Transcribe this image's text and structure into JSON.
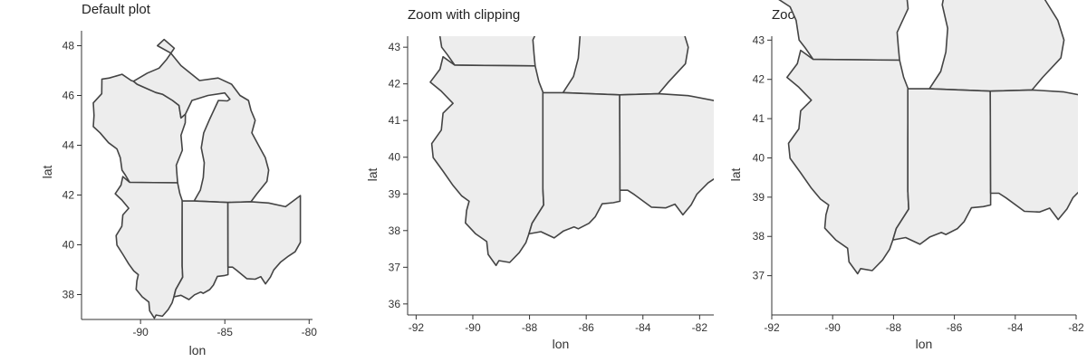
{
  "chart_data": [
    {
      "type": "map",
      "title": "Default plot",
      "xlabel": "lon",
      "ylabel": "lat",
      "xlim": [
        -93.5,
        -79.8
      ],
      "ylim": [
        37.0,
        48.6
      ],
      "xticks": [
        -90,
        -85,
        -80
      ],
      "yticks": [
        38,
        40,
        42,
        44,
        46,
        48
      ],
      "clip": false,
      "regions": [
        "Wisconsin",
        "Michigan",
        "Illinois",
        "Indiana",
        "Ohio"
      ]
    },
    {
      "type": "map",
      "title": "Zoom with clipping",
      "xlabel": "lon",
      "ylabel": "lat",
      "xlim": [
        -92.3,
        -81.5
      ],
      "ylim": [
        35.7,
        43.3
      ],
      "xticks": [
        -92,
        -90,
        -88,
        -86,
        -84,
        -82
      ],
      "yticks": [
        36,
        37,
        38,
        39,
        40,
        41,
        42,
        43
      ],
      "clip": true,
      "regions": [
        "Wisconsin",
        "Michigan",
        "Illinois",
        "Indiana",
        "Ohio"
      ]
    },
    {
      "type": "map",
      "title": "Zoom without clipping",
      "xlabel": "lon",
      "ylabel": "lat",
      "xlim": [
        -92,
        -82
      ],
      "ylim": [
        36.0,
        43.1
      ],
      "xticks": [
        -92,
        -90,
        -88,
        -86,
        -84,
        -82
      ],
      "yticks": [
        37,
        38,
        39,
        40,
        41,
        42,
        43
      ],
      "clip": false,
      "regions": [
        "Wisconsin",
        "Michigan",
        "Illinois",
        "Indiana",
        "Ohio"
      ]
    }
  ],
  "states": {
    "Illinois": [
      [
        -90.64,
        42.51
      ],
      [
        -91.05,
        42.74
      ],
      [
        -91.16,
        42.4
      ],
      [
        -91.5,
        42.05
      ],
      [
        -91.11,
        41.8
      ],
      [
        -90.7,
        41.47
      ],
      [
        -91.05,
        41.2
      ],
      [
        -91.11,
        40.74
      ],
      [
        -91.45,
        40.37
      ],
      [
        -91.4,
        39.99
      ],
      [
        -91.05,
        39.62
      ],
      [
        -90.7,
        39.23
      ],
      [
        -90.4,
        38.95
      ],
      [
        -90.13,
        38.8
      ],
      [
        -90.22,
        38.55
      ],
      [
        -90.26,
        38.21
      ],
      [
        -89.9,
        37.91
      ],
      [
        -89.51,
        37.7
      ],
      [
        -89.46,
        37.35
      ],
      [
        -89.18,
        37.05
      ],
      [
        -89.08,
        37.18
      ],
      [
        -88.7,
        37.13
      ],
      [
        -88.36,
        37.4
      ],
      [
        -88.13,
        37.67
      ],
      [
        -88.02,
        37.91
      ],
      [
        -87.91,
        38.2
      ],
      [
        -87.5,
        38.7
      ],
      [
        -87.53,
        39.15
      ],
      [
        -87.53,
        39.5
      ],
      [
        -87.53,
        40.5
      ],
      [
        -87.52,
        41.7
      ],
      [
        -87.52,
        41.76
      ],
      [
        -87.67,
        42.06
      ],
      [
        -87.8,
        42.49
      ],
      [
        -90.64,
        42.51
      ]
    ],
    "Indiana": [
      [
        -87.53,
        41.76
      ],
      [
        -87.53,
        39.5
      ],
      [
        -87.53,
        39.15
      ],
      [
        -87.5,
        38.7
      ],
      [
        -87.91,
        38.2
      ],
      [
        -88.02,
        37.91
      ],
      [
        -87.6,
        37.97
      ],
      [
        -87.13,
        37.8
      ],
      [
        -86.8,
        37.99
      ],
      [
        -86.43,
        38.1
      ],
      [
        -86.28,
        38.05
      ],
      [
        -85.9,
        38.2
      ],
      [
        -85.68,
        38.38
      ],
      [
        -85.44,
        38.73
      ],
      [
        -85.05,
        38.76
      ],
      [
        -84.81,
        38.8
      ],
      [
        -84.81,
        39.1
      ],
      [
        -84.82,
        41.7
      ],
      [
        -86.82,
        41.76
      ],
      [
        -87.53,
        41.76
      ]
    ],
    "Ohio": [
      [
        -84.82,
        41.7
      ],
      [
        -84.81,
        39.1
      ],
      [
        -84.54,
        39.1
      ],
      [
        -84.3,
        38.98
      ],
      [
        -83.7,
        38.64
      ],
      [
        -83.2,
        38.62
      ],
      [
        -82.87,
        38.72
      ],
      [
        -82.59,
        38.43
      ],
      [
        -82.3,
        38.7
      ],
      [
        -82.1,
        38.99
      ],
      [
        -81.7,
        39.3
      ],
      [
        -81.22,
        39.55
      ],
      [
        -80.83,
        39.72
      ],
      [
        -80.52,
        40.1
      ],
      [
        -80.52,
        40.64
      ],
      [
        -80.52,
        41.98
      ],
      [
        -81.4,
        41.53
      ],
      [
        -82.4,
        41.68
      ],
      [
        -83.45,
        41.73
      ],
      [
        -84.82,
        41.7
      ]
    ],
    "Michigan": [
      [
        -83.45,
        41.73
      ],
      [
        -84.82,
        41.7
      ],
      [
        -86.82,
        41.76
      ],
      [
        -86.45,
        42.2
      ],
      [
        -86.28,
        42.7
      ],
      [
        -86.22,
        43.3
      ],
      [
        -86.4,
        43.9
      ],
      [
        -86.25,
        44.5
      ],
      [
        -85.9,
        45.05
      ],
      [
        -85.38,
        45.8
      ],
      [
        -84.85,
        45.78
      ],
      [
        -84.7,
        45.85
      ],
      [
        -85.0,
        46.1
      ],
      [
        -86.0,
        46.0
      ],
      [
        -86.95,
        45.8
      ],
      [
        -87.34,
        45.25
      ],
      [
        -87.6,
        45.1
      ],
      [
        -87.72,
        45.6
      ],
      [
        -88.1,
        45.8
      ],
      [
        -88.7,
        46.05
      ],
      [
        -89.1,
        46.12
      ],
      [
        -90.2,
        46.45
      ],
      [
        -90.42,
        46.57
      ],
      [
        -89.6,
        46.9
      ],
      [
        -88.9,
        47.1
      ],
      [
        -88.45,
        47.45
      ],
      [
        -88.0,
        47.9
      ],
      [
        -88.6,
        48.25
      ],
      [
        -89.0,
        48.0
      ],
      [
        -88.2,
        47.7
      ],
      [
        -87.6,
        47.2
      ],
      [
        -86.5,
        46.6
      ],
      [
        -85.4,
        46.7
      ],
      [
        -84.6,
        46.45
      ],
      [
        -84.1,
        46.0
      ],
      [
        -83.6,
        45.8
      ],
      [
        -83.45,
        45.4
      ],
      [
        -83.2,
        45.0
      ],
      [
        -83.4,
        44.5
      ],
      [
        -83.0,
        44.0
      ],
      [
        -82.6,
        43.5
      ],
      [
        -82.4,
        43.0
      ],
      [
        -82.5,
        42.55
      ],
      [
        -83.1,
        42.05
      ],
      [
        -83.45,
        41.73
      ]
    ],
    "Wisconsin": [
      [
        -87.8,
        42.49
      ],
      [
        -90.64,
        42.51
      ],
      [
        -90.9,
        42.8
      ],
      [
        -91.1,
        43.0
      ],
      [
        -91.2,
        43.5
      ],
      [
        -91.4,
        43.85
      ],
      [
        -91.9,
        44.1
      ],
      [
        -92.4,
        44.5
      ],
      [
        -92.8,
        44.75
      ],
      [
        -92.76,
        45.2
      ],
      [
        -92.8,
        45.7
      ],
      [
        -92.3,
        46.07
      ],
      [
        -92.29,
        46.66
      ],
      [
        -91.85,
        46.7
      ],
      [
        -91.1,
        46.85
      ],
      [
        -90.55,
        46.6
      ],
      [
        -90.42,
        46.57
      ],
      [
        -90.2,
        46.45
      ],
      [
        -89.1,
        46.12
      ],
      [
        -88.7,
        46.05
      ],
      [
        -88.1,
        45.8
      ],
      [
        -87.72,
        45.6
      ],
      [
        -87.6,
        45.1
      ],
      [
        -87.34,
        45.25
      ],
      [
        -87.35,
        44.9
      ],
      [
        -87.6,
        44.4
      ],
      [
        -87.52,
        43.8
      ],
      [
        -87.88,
        43.2
      ],
      [
        -87.84,
        42.8
      ],
      [
        -87.8,
        42.49
      ]
    ]
  }
}
